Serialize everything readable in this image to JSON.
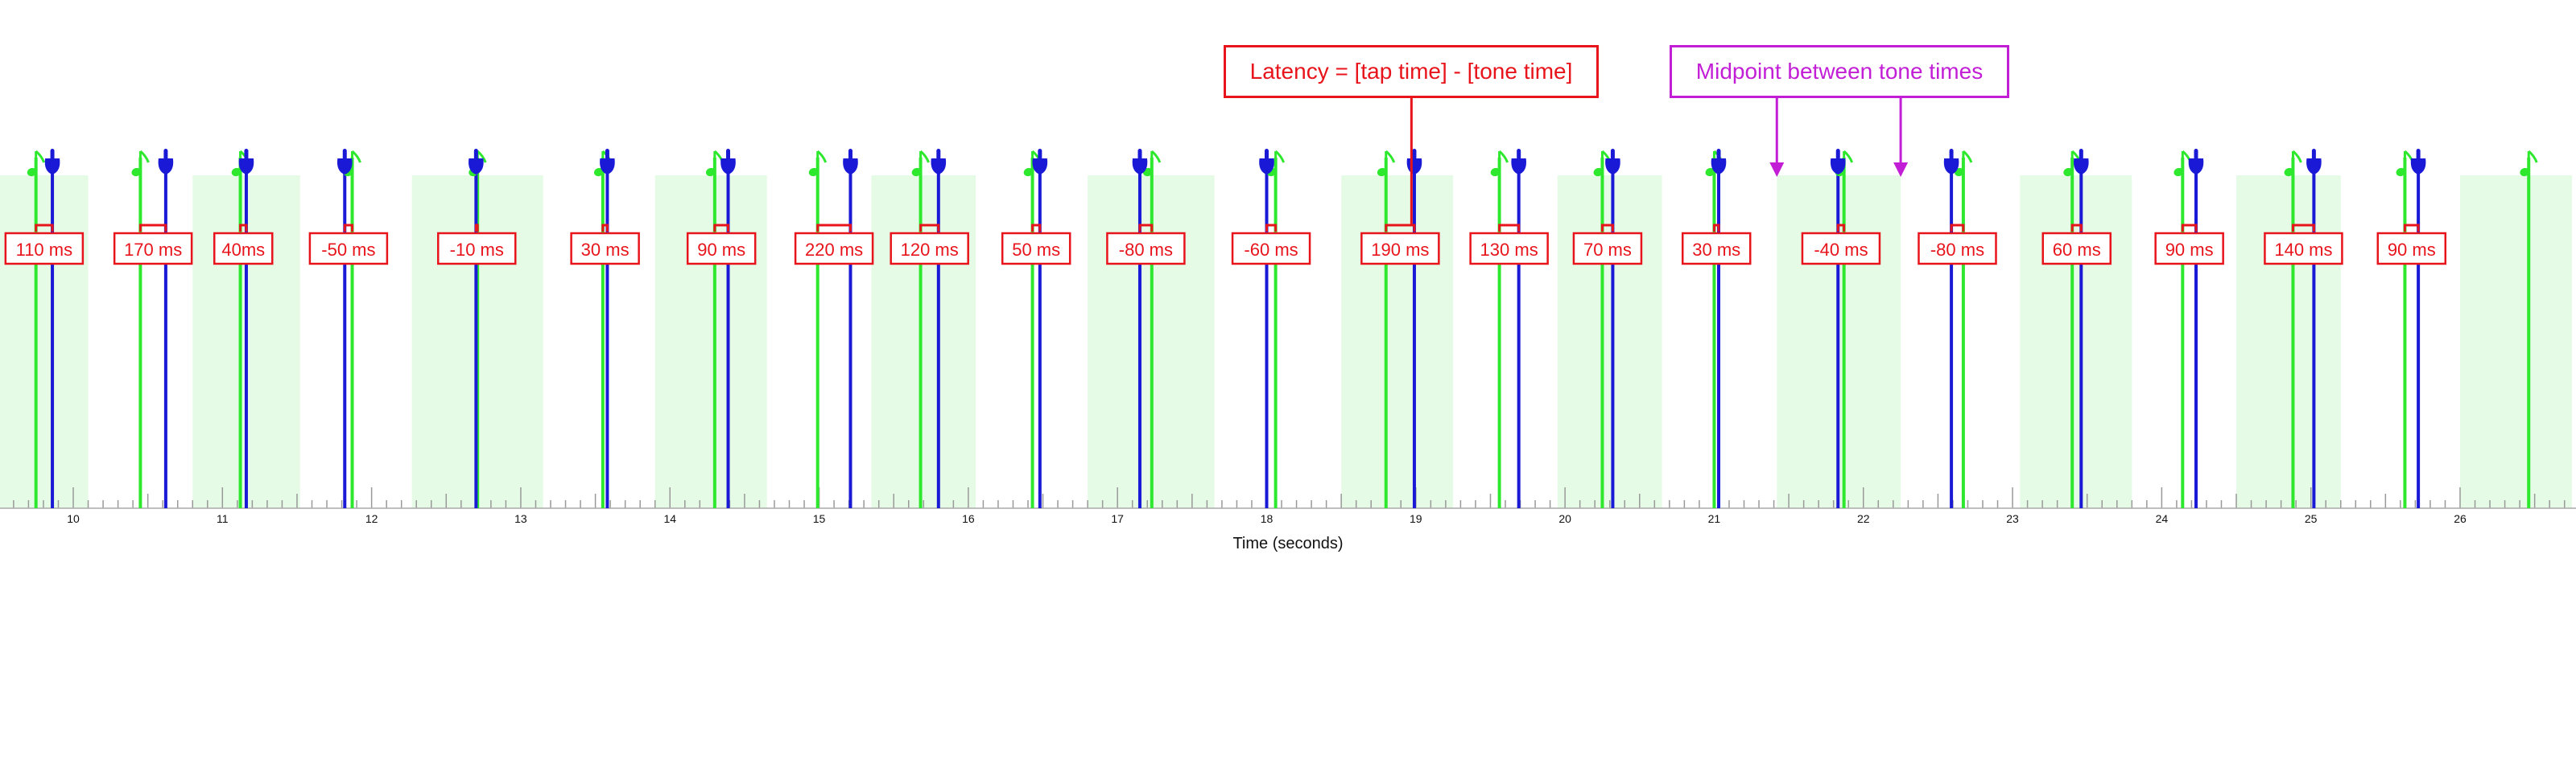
{
  "x_axis": {
    "label": "Time (seconds)",
    "ticks": [
      10,
      11,
      12,
      13,
      14,
      15,
      16,
      17,
      18,
      19,
      20,
      21,
      22,
      23,
      24,
      25,
      26
    ]
  },
  "callouts": {
    "latency": "Latency = [tap time] - [tone time]",
    "midpoint": "Midpoint between tone times"
  },
  "colors": {
    "tone": "#2ee82e",
    "tap": "#1a1ad6",
    "latency": "#e8141b",
    "midpoint": "#c21ed6",
    "window": "#e6fbe6"
  },
  "icons": {
    "tone": "music-note-icon",
    "tap": "pointing-hand-icon"
  },
  "chart_data": {
    "type": "event-timeline",
    "xlabel": "Time (seconds)",
    "xlim": [
      9.5,
      26.75
    ],
    "windows": [
      [
        9.5,
        10.1
      ],
      [
        10.8,
        11.52
      ],
      [
        12.27,
        13.15
      ],
      [
        13.9,
        14.65
      ],
      [
        15.35,
        16.05
      ],
      [
        16.8,
        17.65
      ],
      [
        18.5,
        19.25
      ],
      [
        19.95,
        20.65
      ],
      [
        21.42,
        22.25
      ],
      [
        23.05,
        23.8
      ],
      [
        24.5,
        25.2
      ],
      [
        26.0,
        26.75
      ]
    ],
    "events": [
      {
        "tone": 9.75,
        "tap": 9.86,
        "latency": "110 ms"
      },
      {
        "tone": 10.45,
        "tap": 10.62,
        "latency": "170 ms"
      },
      {
        "tone": 11.12,
        "tap": 11.16,
        "latency": "40ms"
      },
      {
        "tone": 11.87,
        "tap": 11.82,
        "latency": "-50 ms"
      },
      {
        "tone": 12.71,
        "tap": 12.7,
        "latency": "-10 ms"
      },
      {
        "tone": 13.55,
        "tap": 13.58,
        "latency": "30 ms"
      },
      {
        "tone": 14.3,
        "tap": 14.39,
        "latency": "90 ms"
      },
      {
        "tone": 14.99,
        "tap": 15.21,
        "latency": "220 ms"
      },
      {
        "tone": 15.68,
        "tap": 15.8,
        "latency": "120 ms"
      },
      {
        "tone": 16.43,
        "tap": 16.48,
        "latency": "50 ms"
      },
      {
        "tone": 17.23,
        "tap": 17.15,
        "latency": "-80 ms"
      },
      {
        "tone": 18.06,
        "tap": 18.0,
        "latency": "-60 ms"
      },
      {
        "tone": 18.8,
        "tap": 18.99,
        "latency": "190 ms"
      },
      {
        "tone": 19.56,
        "tap": 19.69,
        "latency": "130 ms"
      },
      {
        "tone": 20.25,
        "tap": 20.32,
        "latency": "70 ms"
      },
      {
        "tone": 21.0,
        "tap": 21.03,
        "latency": "30 ms"
      },
      {
        "tone": 21.87,
        "tap": 21.83,
        "latency": "-40 ms"
      },
      {
        "tone": 22.67,
        "tap": 22.59,
        "latency": "-80 ms"
      },
      {
        "tone": 23.4,
        "tap": 23.46,
        "latency": "60 ms"
      },
      {
        "tone": 24.14,
        "tap": 24.23,
        "latency": "90 ms"
      },
      {
        "tone": 24.88,
        "tap": 25.02,
        "latency": "140 ms"
      },
      {
        "tone": 25.63,
        "tap": 25.72,
        "latency": "90 ms"
      },
      {
        "tone": 26.46,
        "tap": null,
        "latency": ""
      }
    ],
    "latency_example_index": 12,
    "midpoint_arrows": [
      21.42,
      22.25
    ]
  }
}
